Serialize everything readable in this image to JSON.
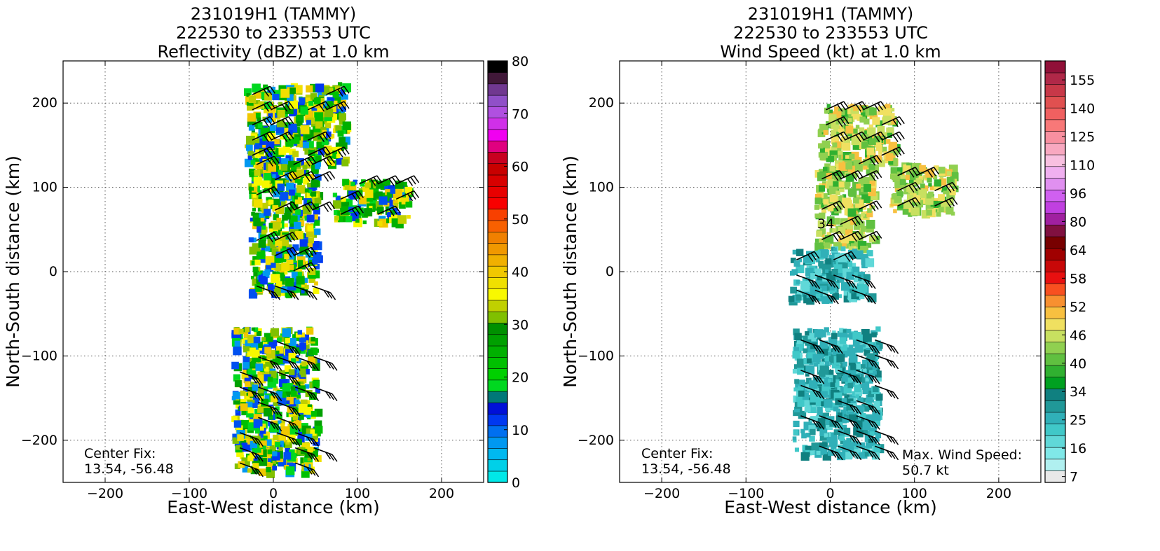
{
  "chart_data": [
    {
      "type": "heatmap",
      "title": [
        "231019H1 (TAMMY)",
        "222530 to 233553 UTC",
        "Reflectivity (dBZ) at 1.0 km"
      ],
      "xlabel": "East-West distance (km)",
      "ylabel": "North-South distance (km)",
      "xlim": [
        -250,
        250
      ],
      "ylim": [
        -250,
        250
      ],
      "xticks": [
        "−200",
        "−100",
        "0",
        "100",
        "200"
      ],
      "yticks": [
        "200",
        "100",
        "0",
        "−100",
        "−200"
      ],
      "grid": "dotted",
      "annotations": {
        "center_fix_label": "Center Fix:",
        "center_fix_value": "13.54, -56.48"
      },
      "colorbar": {
        "ticks": [
          "0",
          "10",
          "20",
          "30",
          "40",
          "50",
          "60",
          "70",
          "80"
        ],
        "colors": [
          "#00e8e8",
          "#00d0e8",
          "#00b8f0",
          "#0098f0",
          "#0070f0",
          "#0038f0",
          "#0010d8",
          "#007878",
          "#00d820",
          "#00d000",
          "#00c000",
          "#00b000",
          "#00a000",
          "#009000",
          "#80c000",
          "#c0d000",
          "#f8f800",
          "#f0e000",
          "#f0c800",
          "#f0b000",
          "#f09800",
          "#f08000",
          "#f86000",
          "#f84000",
          "#f80000",
          "#e80000",
          "#d80000",
          "#c80000",
          "#c80020",
          "#e00080",
          "#f000f0",
          "#d030e8",
          "#b050e0",
          "#9050c8",
          "#703890",
          "#401838",
          "#000000"
        ]
      },
      "swaths": [
        {
          "x": [
            -35,
            85
          ],
          "y": [
            130,
            225
          ],
          "level": "20-40 dBZ"
        },
        {
          "x": [
            -30,
            50
          ],
          "y": [
            -25,
            130
          ],
          "level": "10-40 dBZ"
        },
        {
          "x": [
            70,
            160
          ],
          "y": [
            60,
            110
          ],
          "level": "20-45 dBZ"
        },
        {
          "x": [
            -50,
            50
          ],
          "y": [
            -235,
            -65
          ],
          "level": "10-45 dBZ"
        }
      ]
    },
    {
      "type": "heatmap",
      "title": [
        "231019H1 (TAMMY)",
        "222530 to 233553 UTC",
        "Wind Speed (kt) at 1.0 km"
      ],
      "xlabel": "East-West distance (km)",
      "ylabel": "North-South distance (km)",
      "xlim": [
        -250,
        250
      ],
      "ylim": [
        -250,
        250
      ],
      "xticks": [
        "−200",
        "−100",
        "0",
        "100",
        "200"
      ],
      "yticks": [
        "200",
        "100",
        "0",
        "−100",
        "−200"
      ],
      "grid": "dotted",
      "contour_label": "34",
      "annotations": {
        "center_fix_label": "Center Fix:",
        "center_fix_value": "13.54, -56.48",
        "max_wind_label": "Max. Wind Speed:",
        "max_wind_value": "50.7 kt"
      },
      "colorbar": {
        "ticks": [
          "7",
          "16",
          "25",
          "34",
          "40",
          "46",
          "52",
          "58",
          "64",
          "80",
          "96",
          "110",
          "125",
          "140",
          "155"
        ],
        "colors": [
          "#e8e8e8",
          "#b0f0f0",
          "#80e8e8",
          "#60d8d8",
          "#40c8c8",
          "#30b0b8",
          "#209898",
          "#108080",
          "#00a020",
          "#30b030",
          "#60c040",
          "#90d050",
          "#c8e060",
          "#f0e060",
          "#f8c040",
          "#f89030",
          "#f85020",
          "#e81010",
          "#c80808",
          "#a00000",
          "#780000",
          "#801040",
          "#a020a0",
          "#c040e0",
          "#d060f0",
          "#e090f0",
          "#f0b0f0",
          "#f8c0e0",
          "#f8a8c0",
          "#f890a0",
          "#f87878",
          "#f06060",
          "#e05050",
          "#c83848",
          "#b02848",
          "#901038"
        ]
      },
      "swaths": [
        {
          "x": [
            -15,
            75
          ],
          "y": [
            130,
            200
          ],
          "level": "34-46 kt"
        },
        {
          "x": [
            -20,
            50
          ],
          "y": [
            30,
            130
          ],
          "level": "34-52 kt"
        },
        {
          "x": [
            70,
            145
          ],
          "y": [
            70,
            130
          ],
          "level": "34-46 kt"
        },
        {
          "x": [
            -50,
            45
          ],
          "y": [
            -30,
            30
          ],
          "level": "16-30 kt"
        },
        {
          "x": [
            -45,
            55
          ],
          "y": [
            -215,
            -65
          ],
          "level": "16-30 kt"
        }
      ]
    }
  ]
}
